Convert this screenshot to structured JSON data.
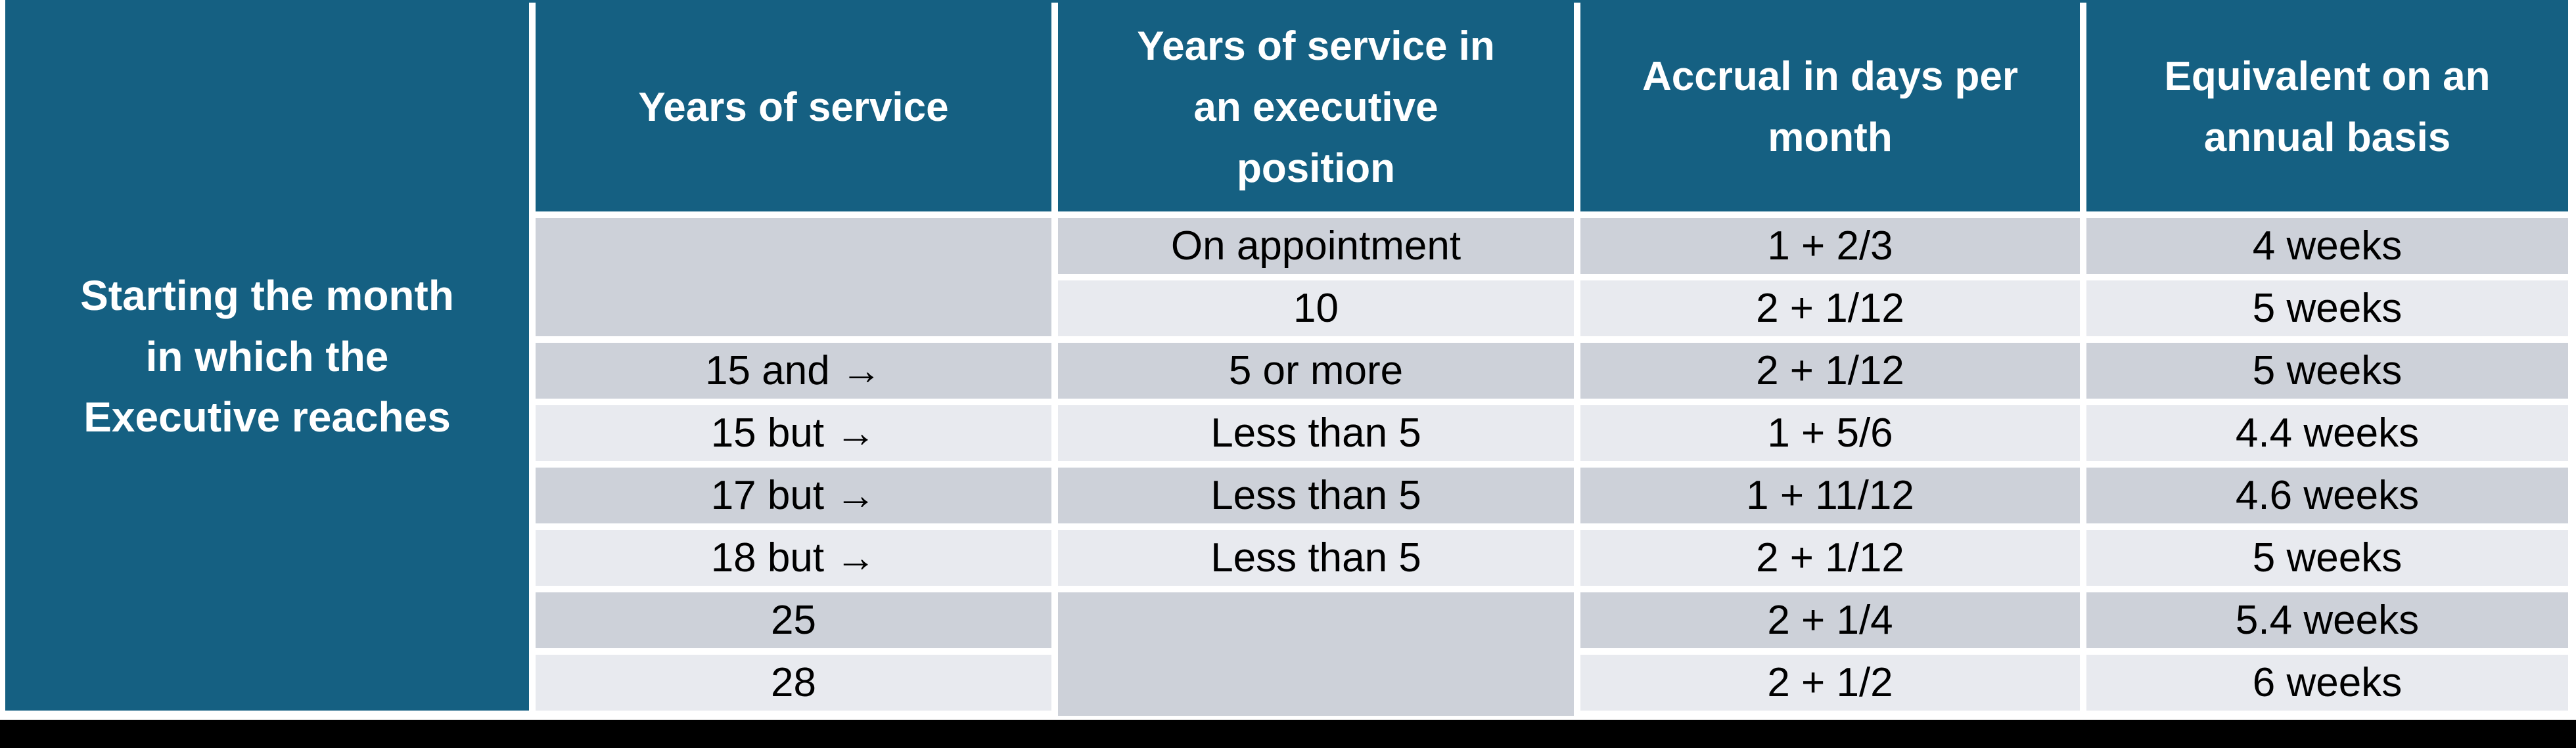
{
  "colors": {
    "accent_teal": "#156082",
    "row_dark": "#cdd1d9",
    "row_light": "#e8eaef",
    "bottom_bar": "#000000",
    "header_text": "#ffffff",
    "cell_text": "#000000"
  },
  "table": {
    "side_label": "Starting the month in which the Executive reaches",
    "columns": {
      "years_of_service": "Years of service",
      "executive_years": "Years of service in an executive position",
      "accrual": "Accrual in days per month",
      "annual": "Equivalent on an annual basis"
    },
    "rows": [
      {
        "years_of_service": "",
        "executive_years": "On appointment",
        "accrual": "1 + 2/3",
        "annual": "4 weeks"
      },
      {
        "years_of_service": "",
        "executive_years": "10",
        "accrual": "2 + 1/12",
        "annual": "5 weeks"
      },
      {
        "years_of_service": "15 and →",
        "executive_years": "5 or more",
        "accrual": "2 + 1/12",
        "annual": "5 weeks"
      },
      {
        "years_of_service": "15 but →",
        "executive_years": "Less than 5",
        "accrual": "1 + 5/6",
        "annual": "4.4 weeks"
      },
      {
        "years_of_service": "17 but →",
        "executive_years": "Less than 5",
        "accrual": "1 + 11/12",
        "annual": "4.6 weeks"
      },
      {
        "years_of_service": "18 but →",
        "executive_years": "Less than 5",
        "accrual": "2 + 1/12",
        "annual": "5 weeks"
      },
      {
        "years_of_service": "25",
        "executive_years": "",
        "accrual": "2 + 1/4",
        "annual": "5.4 weeks"
      },
      {
        "years_of_service": "28",
        "executive_years": "",
        "accrual": "2 + 1/2",
        "annual": "6 weeks"
      }
    ]
  }
}
